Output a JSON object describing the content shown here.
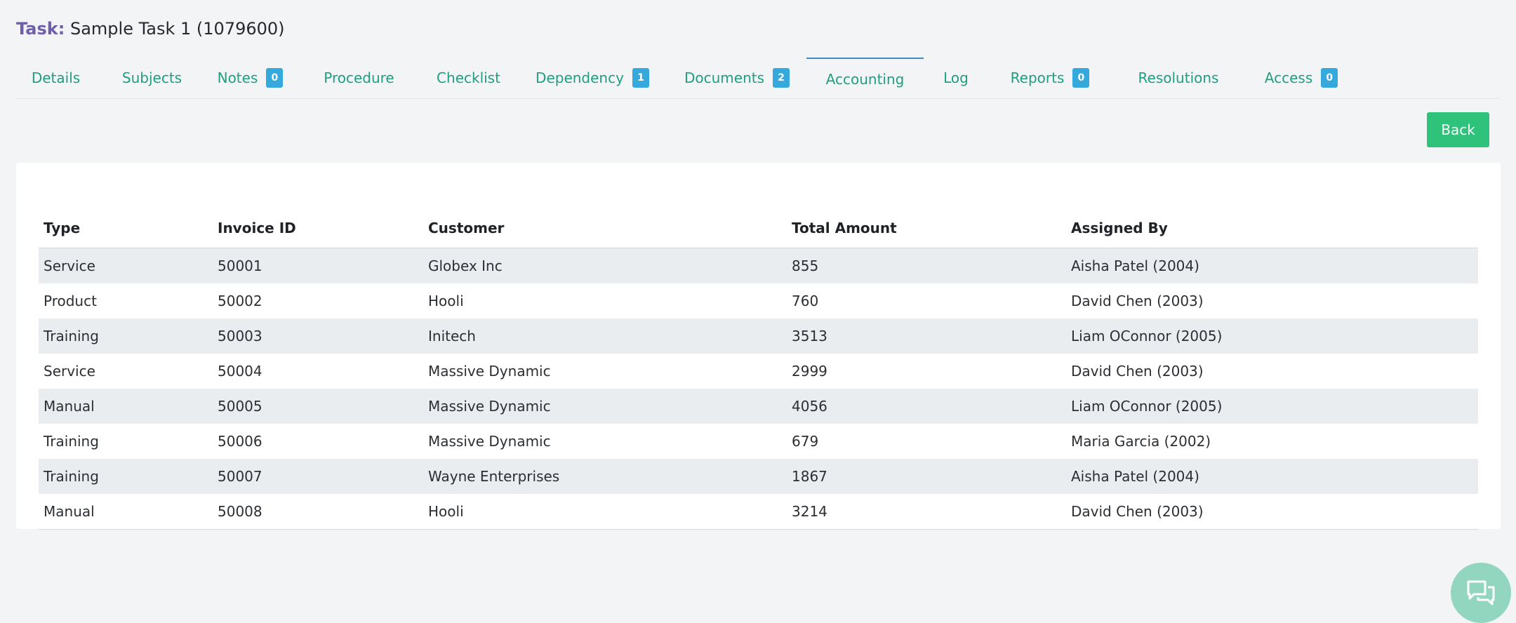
{
  "header": {
    "label": "Task:",
    "task_name": "Sample Task 1 (1079600)"
  },
  "tabs": [
    {
      "label": "Details",
      "badge": null
    },
    {
      "label": "Subjects",
      "badge": null
    },
    {
      "label": "Notes",
      "badge": "0"
    },
    {
      "label": "Procedure",
      "badge": null
    },
    {
      "label": "Checklist",
      "badge": null
    },
    {
      "label": "Dependency",
      "badge": "1"
    },
    {
      "label": "Documents",
      "badge": "2"
    },
    {
      "label": "Accounting",
      "badge": null,
      "active": true
    },
    {
      "label": "Log",
      "badge": null
    },
    {
      "label": "Reports",
      "badge": "0"
    },
    {
      "label": "Resolutions",
      "badge": null
    },
    {
      "label": "Access",
      "badge": "0"
    }
  ],
  "back_label": "Back",
  "table": {
    "columns": [
      "Type",
      "Invoice ID",
      "Customer",
      "Total Amount",
      "Assigned By"
    ],
    "rows": [
      [
        "Service",
        "50001",
        "Globex Inc",
        "855",
        "Aisha Patel (2004)"
      ],
      [
        "Product",
        "50002",
        "Hooli",
        "760",
        "David Chen (2003)"
      ],
      [
        "Training",
        "50003",
        "Initech",
        "3513",
        "Liam OConnor (2005)"
      ],
      [
        "Service",
        "50004",
        "Massive Dynamic",
        "2999",
        "David Chen (2003)"
      ],
      [
        "Manual",
        "50005",
        "Massive Dynamic",
        "4056",
        "Liam OConnor (2005)"
      ],
      [
        "Training",
        "50006",
        "Massive Dynamic",
        "679",
        "Maria Garcia (2002)"
      ],
      [
        "Training",
        "50007",
        "Wayne Enterprises",
        "1867",
        "Aisha Patel (2004)"
      ],
      [
        "Manual",
        "50008",
        "Hooli",
        "3214",
        "David Chen (2003)"
      ]
    ]
  },
  "icons": {
    "chat": "chat-icon"
  },
  "colors": {
    "accent": "#1f9e80",
    "title_label": "#6f5fa6",
    "badge": "#35a9dc",
    "back_button": "#2ec27a",
    "active_tab_border": "#3c8bc2",
    "chat_button": "#92d6c0"
  }
}
